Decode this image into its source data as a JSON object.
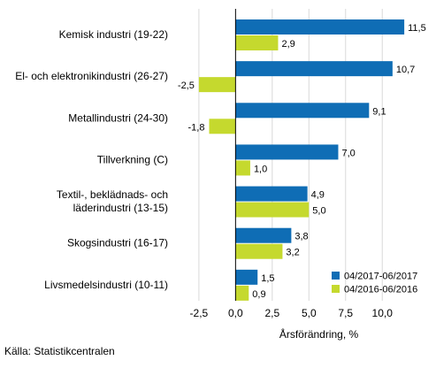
{
  "chart_data": {
    "type": "bar",
    "orientation": "horizontal",
    "categories": [
      [
        "Kemisk industri (19-22)"
      ],
      [
        "El- och elektronikindustri (26-27)"
      ],
      [
        "Metallindustri (24-30)"
      ],
      [
        "Tillverkning (C)"
      ],
      [
        "Textil-, beklädnads- och",
        "läderindustri (13-15)"
      ],
      [
        "Skogsindustri (16-17)"
      ],
      [
        "Livsmedelsindustri (10-11)"
      ]
    ],
    "series": [
      {
        "name": "04/2017-06/2017",
        "color": "#0f6db5",
        "values": [
          11.5,
          10.7,
          9.1,
          7.0,
          4.9,
          3.8,
          1.5
        ],
        "labels": [
          "11,5",
          "10,7",
          "9,1",
          "7,0",
          "4,9",
          "3,8",
          "1,5"
        ]
      },
      {
        "name": "04/2016-06/2016",
        "color": "#c5d92e",
        "values": [
          2.9,
          -2.5,
          -1.8,
          1.0,
          5.0,
          3.2,
          0.9
        ],
        "labels": [
          "2,9",
          "-2,5",
          "-1,8",
          "1,0",
          "5,0",
          "3,2",
          "0,9"
        ]
      }
    ],
    "xlim": [
      -4.0,
      13.0
    ],
    "xticks": [
      -2.5,
      0.0,
      2.5,
      5.0,
      7.5,
      10.0
    ],
    "xtick_labels": [
      "-2,5",
      "0,0",
      "2,5",
      "5,0",
      "7,5",
      "10,0"
    ],
    "xlabel": "Årsförändring, %",
    "ylabel": "",
    "title": "",
    "grid": "vertical",
    "legend_position": "bottom-right",
    "colors": {
      "grid": "#d9d9d9",
      "zero_line": "#000000",
      "text": "#000000"
    }
  },
  "source": "Källa: Statistikcentralen"
}
